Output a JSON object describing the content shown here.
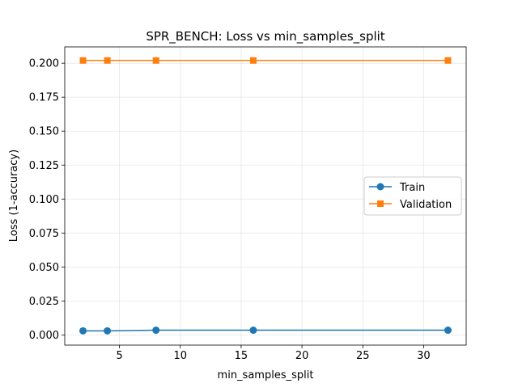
{
  "chart_data": {
    "type": "line",
    "title": "SPR_BENCH: Loss vs min_samples_split",
    "xlabel": "min_samples_split",
    "ylabel": "Loss (1-accuracy)",
    "x": [
      2,
      4,
      8,
      16,
      32
    ],
    "xlim": [
      0.5,
      33.5
    ],
    "ylim": [
      -0.0075,
      0.212
    ],
    "xticks": [
      5,
      10,
      15,
      20,
      25,
      30
    ],
    "xtick_labels": [
      "5",
      "10",
      "15",
      "20",
      "25",
      "30"
    ],
    "yticks": [
      0.0,
      0.025,
      0.05,
      0.075,
      0.1,
      0.125,
      0.15,
      0.175,
      0.2
    ],
    "ytick_labels": [
      "0.000",
      "0.025",
      "0.050",
      "0.075",
      "0.100",
      "0.125",
      "0.150",
      "0.175",
      "0.200"
    ],
    "grid": true,
    "legend_position": "center-right",
    "series": [
      {
        "name": "Train",
        "values": [
          0.003,
          0.003,
          0.0035,
          0.0035,
          0.0035
        ],
        "color": "#1f77b4",
        "marker": "circle"
      },
      {
        "name": "Validation",
        "values": [
          0.202,
          0.202,
          0.202,
          0.202,
          0.202
        ],
        "color": "#ff7f0e",
        "marker": "square"
      }
    ]
  }
}
